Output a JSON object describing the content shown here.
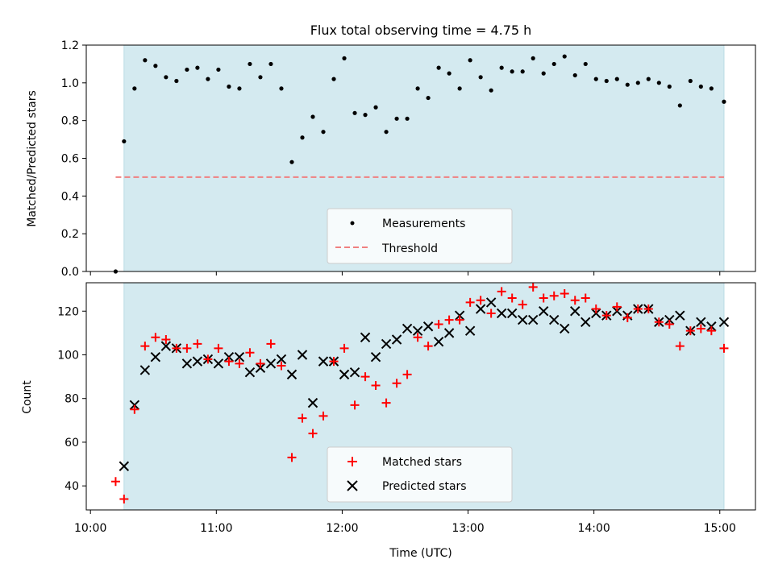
{
  "chart_data": [
    {
      "type": "scatter",
      "title": "Flux total observing time = 4.75 h",
      "xlabel": "",
      "ylabel": "Matched/Predicted stars",
      "xlim": [
        "09:58",
        "15:17"
      ],
      "ylim": [
        0,
        1.2
      ],
      "x_ticks": [
        "10:00",
        "11:00",
        "12:00",
        "13:00",
        "14:00",
        "15:00"
      ],
      "y_ticks": [
        "0.0",
        "0.2",
        "0.4",
        "0.6",
        "0.8",
        "1.0",
        "1.2"
      ],
      "shaded_interval": {
        "start": "10:16",
        "end": "15:02",
        "color": "#d4eaf0"
      },
      "threshold": {
        "name": "Threshold",
        "value": 0.5,
        "x_start": "10:12",
        "x_end": "15:02",
        "color": "#f08080",
        "style": "dashed"
      },
      "legend": {
        "placement": "lower-center",
        "entries": [
          "Measurements",
          "Threshold"
        ]
      },
      "grid": false,
      "series": [
        {
          "name": "Measurements",
          "color": "#000000",
          "marker": "dot",
          "x": [
            "10:12",
            "10:16",
            "10:21",
            "10:26",
            "10:31",
            "10:36",
            "10:41",
            "10:46",
            "10:51",
            "10:56",
            "11:01",
            "11:06",
            "11:11",
            "11:16",
            "11:21",
            "11:26",
            "11:31",
            "11:36",
            "11:41",
            "11:46",
            "11:51",
            "11:56",
            "12:01",
            "12:06",
            "12:11",
            "12:16",
            "12:21",
            "12:26",
            "12:31",
            "12:36",
            "12:41",
            "12:46",
            "12:51",
            "12:56",
            "13:01",
            "13:06",
            "13:11",
            "13:16",
            "13:21",
            "13:26",
            "13:31",
            "13:36",
            "13:41",
            "13:46",
            "13:51",
            "13:56",
            "14:01",
            "14:06",
            "14:11",
            "14:16",
            "14:21",
            "14:26",
            "14:31",
            "14:36",
            "14:41",
            "14:46",
            "14:51",
            "14:56",
            "15:02"
          ],
          "y": [
            0.0,
            0.69,
            0.97,
            1.12,
            1.09,
            1.03,
            1.01,
            1.07,
            1.08,
            1.02,
            1.07,
            0.98,
            0.97,
            1.1,
            1.03,
            1.1,
            0.97,
            0.58,
            0.71,
            0.82,
            0.74,
            1.02,
            1.13,
            0.84,
            0.83,
            0.87,
            0.74,
            0.81,
            0.81,
            0.97,
            0.92,
            1.08,
            1.05,
            0.97,
            1.12,
            1.03,
            0.96,
            1.08,
            1.06,
            1.06,
            1.13,
            1.05,
            1.1,
            1.14,
            1.04,
            1.1,
            1.02,
            1.01,
            1.02,
            0.99,
            1.0,
            1.02,
            1.0,
            0.98,
            0.88,
            1.01,
            0.98,
            0.97,
            0.9
          ]
        }
      ]
    },
    {
      "type": "scatter",
      "title": "",
      "xlabel": "Time (UTC)",
      "ylabel": "Count",
      "xlim": [
        "09:58",
        "15:17"
      ],
      "ylim": [
        29,
        133
      ],
      "x_ticks": [
        "10:00",
        "11:00",
        "12:00",
        "13:00",
        "14:00",
        "15:00"
      ],
      "y_ticks": [
        "40",
        "60",
        "80",
        "100",
        "120"
      ],
      "shaded_interval": {
        "start": "10:16",
        "end": "15:02",
        "color": "#d4eaf0"
      },
      "legend": {
        "placement": "lower-center",
        "entries": [
          "Matched stars",
          "Predicted stars"
        ]
      },
      "grid": false,
      "x": [
        "10:12",
        "10:16",
        "10:21",
        "10:26",
        "10:31",
        "10:36",
        "10:41",
        "10:46",
        "10:51",
        "10:56",
        "11:01",
        "11:06",
        "11:11",
        "11:16",
        "11:21",
        "11:26",
        "11:31",
        "11:36",
        "11:41",
        "11:46",
        "11:51",
        "11:56",
        "12:01",
        "12:06",
        "12:11",
        "12:16",
        "12:21",
        "12:26",
        "12:31",
        "12:36",
        "12:41",
        "12:46",
        "12:51",
        "12:56",
        "13:01",
        "13:06",
        "13:11",
        "13:16",
        "13:21",
        "13:26",
        "13:31",
        "13:36",
        "13:41",
        "13:46",
        "13:51",
        "13:56",
        "14:01",
        "14:06",
        "14:11",
        "14:16",
        "14:21",
        "14:26",
        "14:31",
        "14:36",
        "14:41",
        "14:46",
        "14:51",
        "14:56",
        "15:02"
      ],
      "series": [
        {
          "name": "Matched stars",
          "color": "#ff0000",
          "marker": "plus",
          "values": [
            42,
            34,
            75,
            104,
            108,
            107,
            103,
            103,
            105,
            98,
            103,
            97,
            96,
            101,
            96,
            105,
            95,
            53,
            71,
            64,
            72,
            97,
            103,
            77,
            90,
            86,
            78,
            87,
            91,
            108,
            104,
            114,
            116,
            116,
            124,
            125,
            119,
            129,
            126,
            123,
            131,
            126,
            127,
            128,
            125,
            126,
            121,
            118,
            122,
            117,
            121,
            121,
            115,
            114,
            104,
            111,
            112,
            111,
            103
          ]
        },
        {
          "name": "Predicted stars",
          "color": "#000000",
          "marker": "x",
          "values": [
            null,
            49,
            77,
            93,
            99,
            104,
            103,
            96,
            97,
            98,
            96,
            99,
            99,
            92,
            94,
            96,
            98,
            91,
            100,
            78,
            97,
            97,
            91,
            92,
            108,
            99,
            105,
            107,
            112,
            111,
            113,
            106,
            110,
            118,
            111,
            121,
            124,
            119,
            119,
            116,
            116,
            120,
            116,
            112,
            120,
            115,
            119,
            118,
            120,
            118,
            121,
            121,
            115,
            116,
            118,
            111,
            115,
            113,
            115
          ]
        }
      ]
    }
  ]
}
